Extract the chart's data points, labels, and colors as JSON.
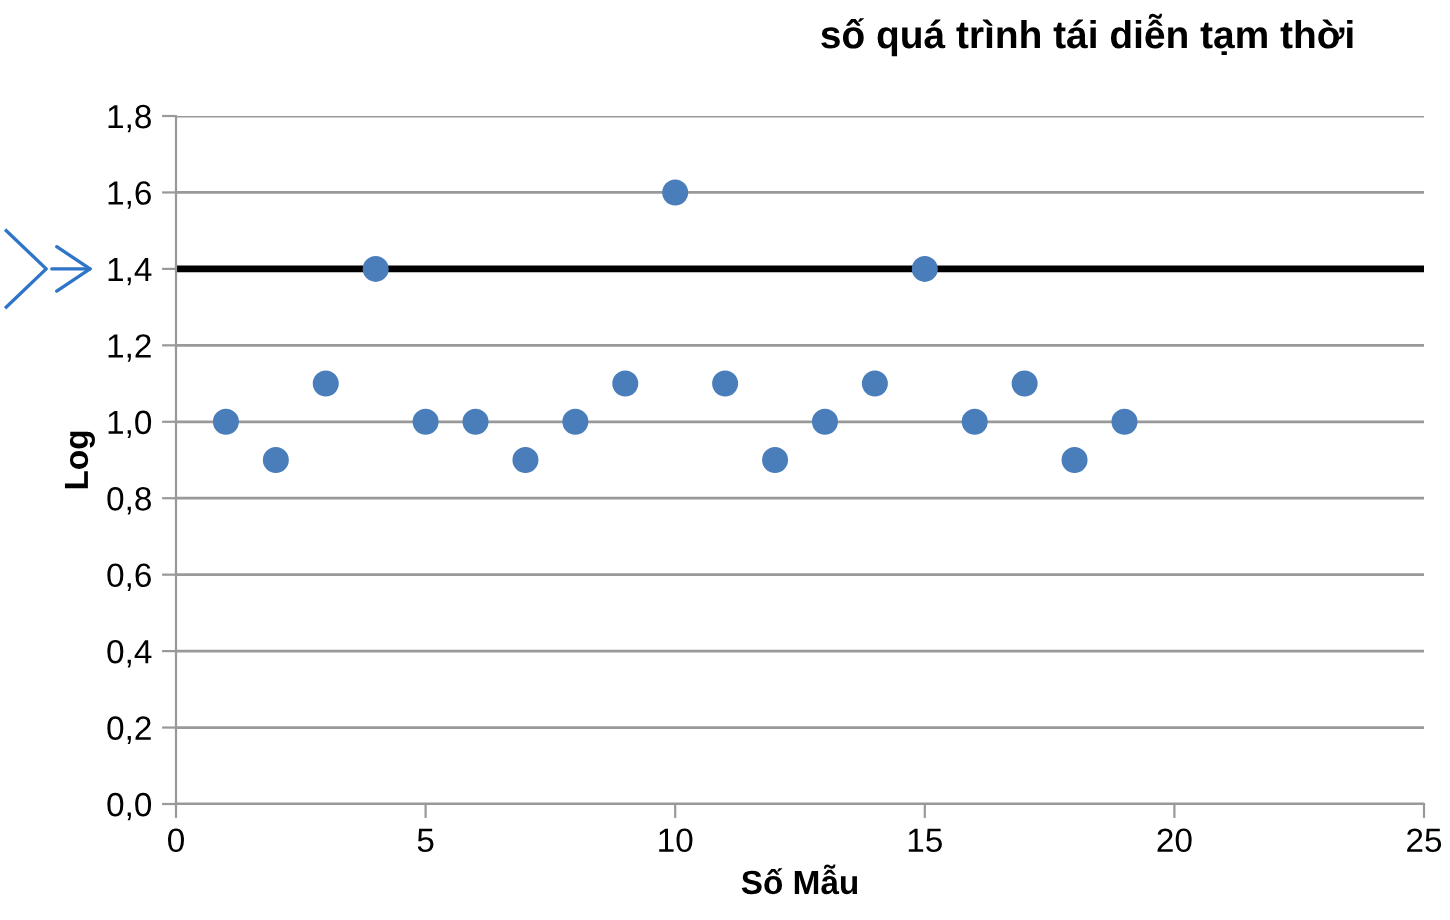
{
  "chart_data": {
    "type": "scatter",
    "title": "số quá trình tái diễn tạm thời",
    "xlabel": "Số Mẫu",
    "ylabel": "Log",
    "x": [
      1,
      2,
      3,
      4,
      5,
      6,
      7,
      8,
      9,
      10,
      11,
      12,
      13,
      14,
      15,
      16,
      17,
      18,
      19
    ],
    "series": [
      {
        "color": "#4a7ebb",
        "values": [
          1.0,
          0.9,
          1.1,
          1.4,
          1.0,
          1.0,
          0.9,
          1.0,
          1.1,
          1.6,
          1.1,
          0.9,
          1.0,
          1.1,
          1.4,
          1.0,
          1.1,
          0.9,
          1.0
        ]
      }
    ],
    "xlim": [
      0,
      25
    ],
    "xticks": [
      0,
      5,
      10,
      15,
      20,
      25
    ],
    "ylim": [
      0,
      1.8
    ],
    "yticks": [
      {
        "value": 0,
        "label": "0,0"
      },
      {
        "value": 0.2,
        "label": "0,2"
      },
      {
        "value": 0.4,
        "label": "0,4"
      },
      {
        "value": 0.6,
        "label": "0,6"
      },
      {
        "value": 0.8,
        "label": "0,8"
      },
      {
        "value": 1.0,
        "label": "1,0"
      },
      {
        "value": 1.2,
        "label": "1,2"
      },
      {
        "value": 1.4,
        "label": "1,4"
      },
      {
        "value": 1.6,
        "label": "1,6"
      },
      {
        "value": 1.8,
        "label": "1,8"
      }
    ],
    "ref_lines": [
      {
        "axis": "y",
        "value": 1.4,
        "color": "#000000",
        "line_style": "solid"
      }
    ],
    "grid": "y",
    "marker": "circle",
    "legend": false
  }
}
